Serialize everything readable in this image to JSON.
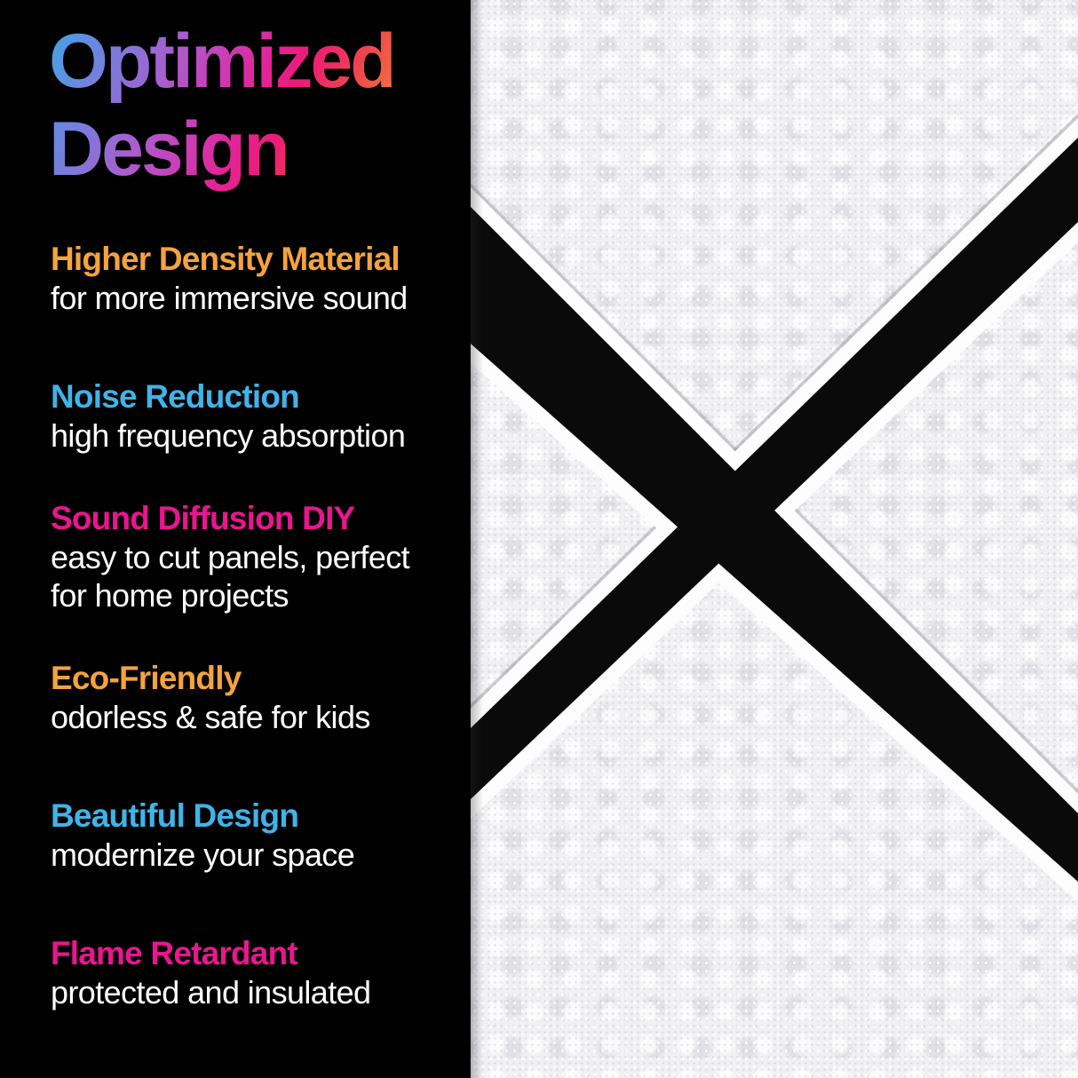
{
  "page": {
    "background": "#000000",
    "kind": "product feature infographic"
  },
  "title": {
    "line1": "Optimized",
    "line2": "Design",
    "gradient_css": "linear-gradient(113deg, #3FA7E6 0%, #7C7ADA 20%, #A95ECF 33%, #C840B8 45%, #E2259A 56%, #ED1A78 66%, #EF414F 78%, #F3703F 90%, #F68B36 100%)",
    "gradient_colors": [
      "#3FA7E6",
      "#7C7ADA",
      "#C840B8",
      "#ED1A78",
      "#F3703F",
      "#F68B36"
    ]
  },
  "features": [
    {
      "heading": "Higher Density Material",
      "color": "#F5A33C",
      "lines": [
        "for more immersive sound"
      ]
    },
    {
      "heading": "Noise Reduction",
      "color": "#3FB4E8",
      "lines": [
        "high frequency absorption"
      ]
    },
    {
      "heading": "Sound Diffusion DIY",
      "color": "#EB1590",
      "lines": [
        "easy to cut panels, perfect",
        "for home projects"
      ]
    },
    {
      "heading": "Eco-Friendly",
      "color": "#F5A33C",
      "lines": [
        "odorless & safe for kids"
      ]
    },
    {
      "heading": "Beautiful Design",
      "color": "#3FB4E8",
      "lines": [
        "modernize your space"
      ]
    },
    {
      "heading": "Flame Retardant",
      "color": "#EB1590",
      "lines": [
        "protected and insulated"
      ]
    }
  ],
  "photo": {
    "subject": "white felt acoustic panels mounted diagonally with black gaps forming an X",
    "panel_color": "#F1F1F3",
    "gap_color": "#0A0A0B",
    "bevel_color": "#FDFDFD"
  }
}
